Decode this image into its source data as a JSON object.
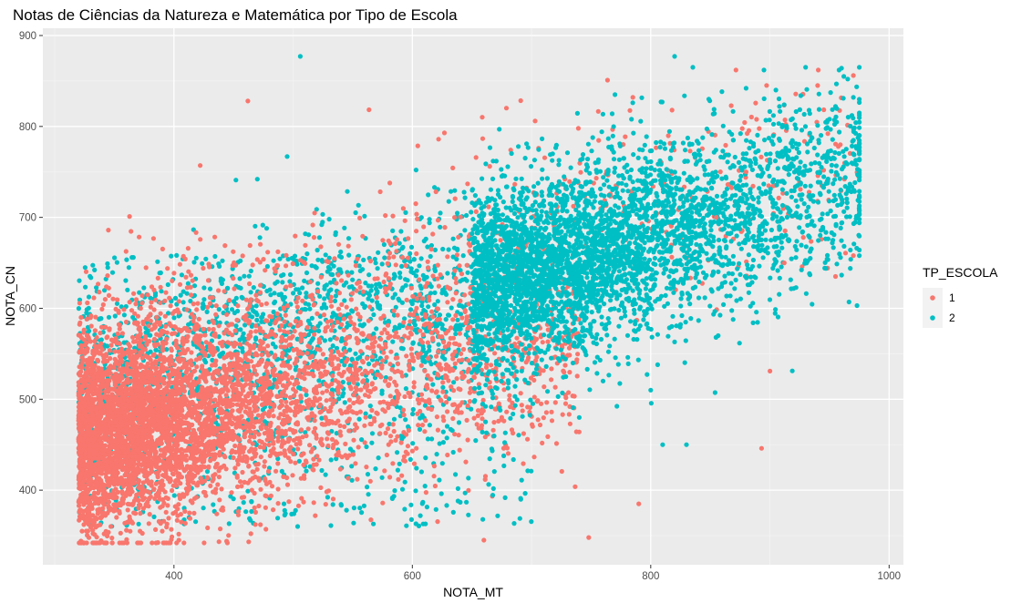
{
  "chart_data": {
    "type": "scatter",
    "title": "Notas de Ciências da Natureza e Matemática por Tipo de Escola",
    "xlabel": "NOTA_MT",
    "ylabel": "NOTA_CN",
    "xlim": [
      290,
      1012
    ],
    "ylim": [
      318,
      908
    ],
    "x_ticks": [
      400,
      600,
      800,
      1000
    ],
    "x_tick_labels": [
      "400",
      "600",
      "800",
      "1000"
    ],
    "y_ticks": [
      400,
      500,
      600,
      700,
      800,
      900
    ],
    "y_tick_labels": [
      "400",
      "500",
      "600",
      "700",
      "800",
      "900"
    ],
    "grid": true,
    "panel_background": "#ebebeb",
    "legend": {
      "title": "TP_ESCOLA",
      "placement": "right",
      "entries": [
        {
          "label": "1",
          "color": "#F8766D"
        },
        {
          "label": "2",
          "color": "#00BFC4"
        }
      ]
    },
    "series": [
      {
        "name": "1",
        "color": "#F8766D",
        "cloud": {
          "x_range": [
            320,
            975
          ],
          "y_range": [
            342,
            862
          ],
          "density_center": [
            430,
            470
          ]
        },
        "points": [
          {
            "x": 462,
            "y": 828
          },
          {
            "x": 422,
            "y": 757
          },
          {
            "x": 345,
            "y": 686
          },
          {
            "x": 703,
            "y": 806
          },
          {
            "x": 622,
            "y": 786
          },
          {
            "x": 785,
            "y": 832
          },
          {
            "x": 900,
            "y": 531
          },
          {
            "x": 893,
            "y": 446
          },
          {
            "x": 790,
            "y": 385
          },
          {
            "x": 748,
            "y": 348
          },
          {
            "x": 660,
            "y": 345
          },
          {
            "x": 970,
            "y": 856
          },
          {
            "x": 940,
            "y": 845
          },
          {
            "x": 955,
            "y": 635
          },
          {
            "x": 970,
            "y": 658
          },
          {
            "x": 928,
            "y": 678
          },
          {
            "x": 912,
            "y": 650
          },
          {
            "x": 880,
            "y": 750
          },
          {
            "x": 855,
            "y": 700
          }
        ]
      },
      {
        "name": "2",
        "color": "#00BFC4",
        "cloud": {
          "x_range": [
            320,
            975
          ],
          "y_range": [
            345,
            865
          ],
          "density_center": [
            820,
            720
          ]
        },
        "points": [
          {
            "x": 506,
            "y": 877
          },
          {
            "x": 820,
            "y": 877
          },
          {
            "x": 495,
            "y": 767
          },
          {
            "x": 470,
            "y": 742
          },
          {
            "x": 452,
            "y": 741
          },
          {
            "x": 770,
            "y": 835
          },
          {
            "x": 935,
            "y": 788
          },
          {
            "x": 895,
            "y": 862
          },
          {
            "x": 958,
            "y": 862
          },
          {
            "x": 962,
            "y": 855
          },
          {
            "x": 955,
            "y": 822
          },
          {
            "x": 970,
            "y": 832
          },
          {
            "x": 950,
            "y": 808
          },
          {
            "x": 905,
            "y": 840
          },
          {
            "x": 880,
            "y": 842
          },
          {
            "x": 830,
            "y": 450
          },
          {
            "x": 810,
            "y": 450
          },
          {
            "x": 800,
            "y": 510
          },
          {
            "x": 760,
            "y": 520
          },
          {
            "x": 740,
            "y": 480
          }
        ]
      }
    ]
  }
}
